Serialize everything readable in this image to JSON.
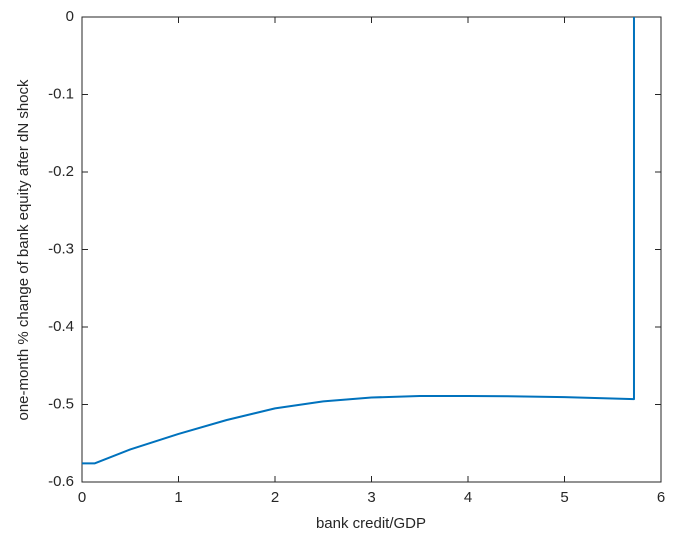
{
  "chart_data": {
    "type": "line",
    "x_label": "bank credit/GDP",
    "y_label": "one-month % change of bank equity after dN shock",
    "x": [
      0,
      0.13,
      0.5,
      1,
      1.5,
      2,
      2.5,
      3,
      3.5,
      4,
      4.5,
      5,
      5.72,
      5.72
    ],
    "series": [
      {
        "color": "#0072bd",
        "values": [
          -0.576,
          -0.576,
          -0.558,
          -0.538,
          -0.52,
          -0.505,
          -0.496,
          -0.491,
          -0.489,
          -0.489,
          -0.4895,
          -0.4905,
          -0.493,
          0
        ]
      }
    ],
    "xlim": [
      0,
      6
    ],
    "ylim": [
      -0.6,
      0
    ],
    "xticks": [
      0,
      1,
      2,
      3,
      4,
      5,
      6
    ],
    "yticks": [
      -0.6,
      -0.5,
      -0.4,
      -0.3,
      -0.2,
      -0.1,
      0
    ],
    "grid": false
  }
}
